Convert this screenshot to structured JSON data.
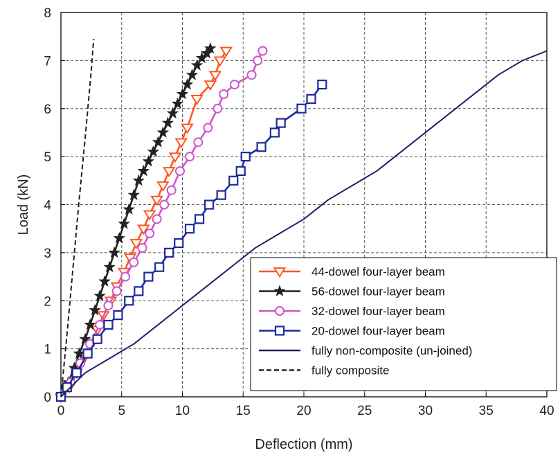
{
  "chart_data": {
    "type": "line",
    "title": "",
    "xlabel": "Deflection (mm)",
    "ylabel": "Load (kN)",
    "xlim": [
      0,
      40
    ],
    "ylim": [
      0,
      8
    ],
    "xticks": [
      0,
      5,
      10,
      15,
      20,
      25,
      30,
      35,
      40
    ],
    "yticks": [
      0,
      1,
      2,
      3,
      4,
      5,
      6,
      7,
      8
    ],
    "grid": true,
    "legend_position": "bottom-right",
    "series": [
      {
        "name": "44-dowel four-layer beam",
        "color": "#ff5522",
        "marker": "triangle-down",
        "x": [
          0,
          0.7,
          1.3,
          1.9,
          2.4,
          3.0,
          3.5,
          4.1,
          4.6,
          5.2,
          5.7,
          6.2,
          6.8,
          7.3,
          7.9,
          8.4,
          8.9,
          9.4,
          9.9,
          10.4,
          11.2,
          12.3,
          12.7,
          13.1,
          13.6
        ],
        "y": [
          0,
          0.2,
          0.5,
          0.8,
          1.1,
          1.4,
          1.7,
          2.0,
          2.3,
          2.6,
          2.9,
          3.2,
          3.5,
          3.8,
          4.1,
          4.4,
          4.7,
          5.0,
          5.3,
          5.6,
          6.2,
          6.5,
          6.7,
          7.0,
          7.2
        ]
      },
      {
        "name": "56-dowel four-layer beam",
        "color": "#222222",
        "marker": "star",
        "x": [
          0,
          0.6,
          1.1,
          1.5,
          2.0,
          2.4,
          2.8,
          3.2,
          3.6,
          4.0,
          4.4,
          4.8,
          5.2,
          5.6,
          6.0,
          6.4,
          6.8,
          7.2,
          7.6,
          8.0,
          8.4,
          8.8,
          9.2,
          9.6,
          10.0,
          10.4,
          10.8,
          11.2,
          11.6,
          12.0,
          12.3
        ],
        "y": [
          0,
          0.3,
          0.6,
          0.9,
          1.2,
          1.5,
          1.8,
          2.1,
          2.4,
          2.7,
          3.0,
          3.3,
          3.6,
          3.9,
          4.2,
          4.5,
          4.7,
          4.9,
          5.1,
          5.3,
          5.5,
          5.7,
          5.9,
          6.1,
          6.3,
          6.5,
          6.7,
          6.9,
          7.05,
          7.15,
          7.25
        ]
      },
      {
        "name": "32-dowel four-layer beam",
        "color": "#cc55cc",
        "marker": "circle",
        "x": [
          0,
          0.8,
          1.6,
          2.4,
          3.2,
          3.9,
          4.6,
          5.3,
          6.0,
          6.7,
          7.3,
          7.9,
          8.5,
          9.1,
          9.8,
          10.6,
          11.3,
          12.1,
          12.9,
          13.4,
          14.3,
          15.7,
          16.2,
          16.6
        ],
        "y": [
          0,
          0.3,
          0.7,
          1.1,
          1.5,
          1.9,
          2.2,
          2.5,
          2.8,
          3.1,
          3.4,
          3.7,
          4.0,
          4.3,
          4.7,
          5.0,
          5.3,
          5.6,
          6.0,
          6.3,
          6.5,
          6.7,
          7.0,
          7.2
        ]
      },
      {
        "name": "20-dowel four-layer beam",
        "color": "#1c2aa0",
        "marker": "square",
        "x": [
          0,
          0.5,
          1.3,
          2.2,
          3.0,
          3.9,
          4.7,
          5.6,
          6.4,
          7.2,
          8.1,
          8.9,
          9.7,
          10.6,
          11.4,
          12.2,
          13.2,
          14.2,
          14.8,
          15.2,
          16.5,
          17.6,
          18.1,
          19.8,
          20.6,
          21.5
        ],
        "y": [
          0,
          0.2,
          0.5,
          0.9,
          1.2,
          1.5,
          1.7,
          2.0,
          2.2,
          2.5,
          2.7,
          3.0,
          3.2,
          3.5,
          3.7,
          4.0,
          4.2,
          4.5,
          4.7,
          5.0,
          5.2,
          5.5,
          5.7,
          6.0,
          6.2,
          6.5
        ]
      },
      {
        "name": "fully non-composite (un-joined)",
        "color": "#1c2266",
        "marker": "none",
        "dash": "solid",
        "x": [
          0,
          2,
          4,
          6,
          8,
          10,
          12,
          13,
          14,
          16,
          18,
          20,
          22,
          24,
          26,
          28,
          30,
          32,
          34,
          36,
          38,
          40
        ],
        "y": [
          0,
          0.5,
          0.8,
          1.1,
          1.5,
          1.9,
          2.3,
          2.5,
          2.7,
          3.1,
          3.4,
          3.7,
          4.1,
          4.4,
          4.7,
          5.1,
          5.5,
          5.9,
          6.3,
          6.7,
          7.0,
          7.2
        ]
      },
      {
        "name": "fully composite",
        "color": "#222222",
        "marker": "none",
        "dash": "dashed",
        "x": [
          0,
          0.5,
          1.0,
          1.5,
          2.0,
          2.5,
          2.7
        ],
        "y": [
          0,
          1.3,
          2.7,
          4.1,
          5.4,
          6.8,
          7.45
        ]
      }
    ]
  }
}
